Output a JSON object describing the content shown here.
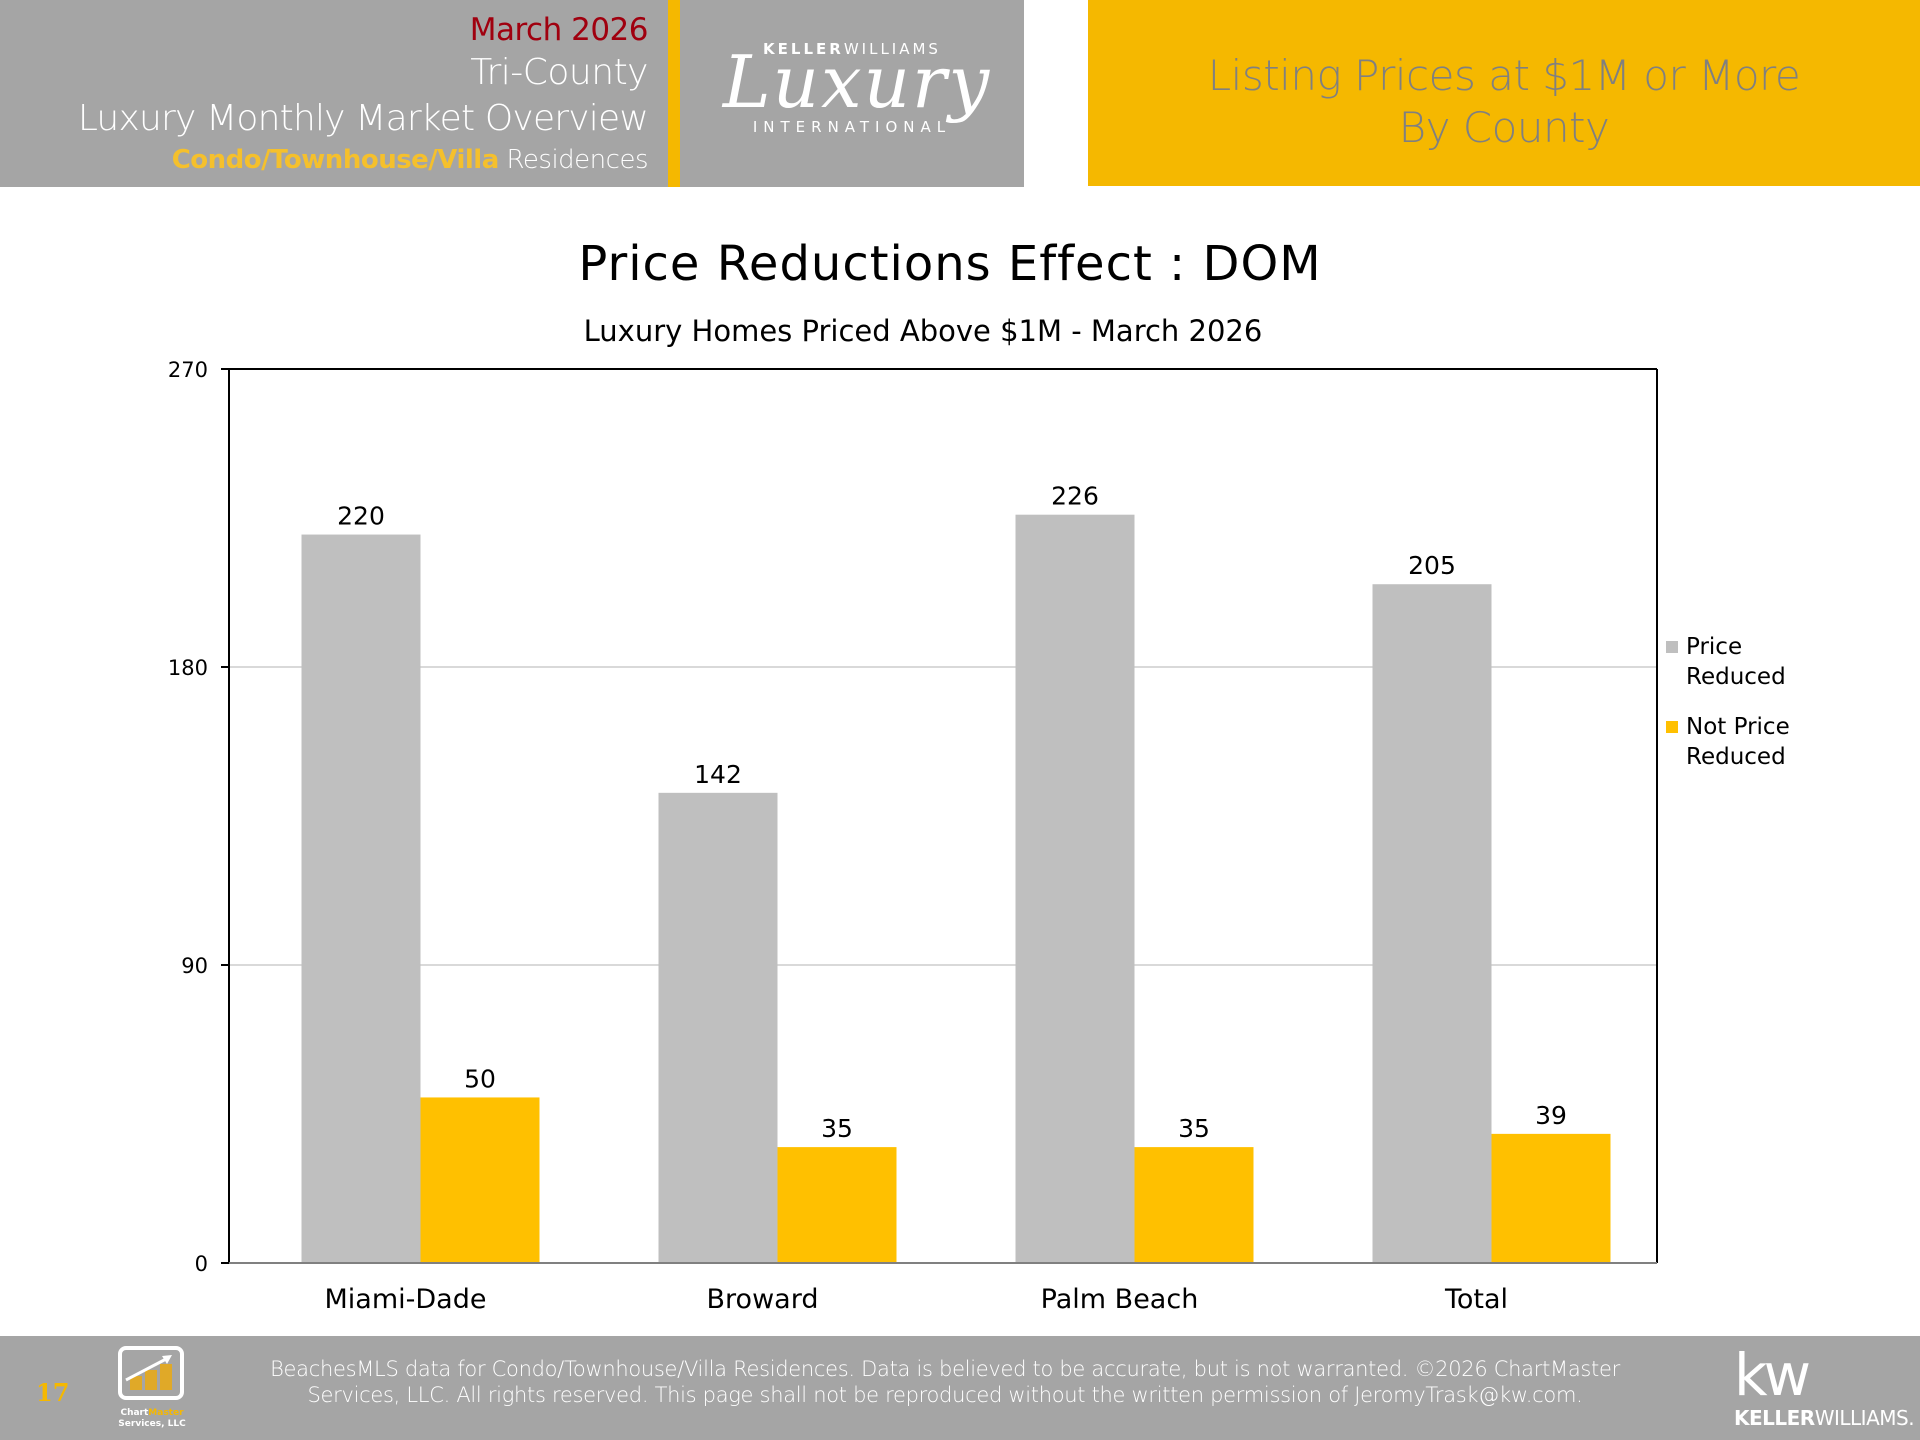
{
  "header": {
    "month": "March 2026",
    "region": "Tri-County",
    "report_title": "Luxury Monthly Market Overview",
    "property_type_accent": "Condo/Townhouse/Villa",
    "property_type_rest": " Residences",
    "logo": {
      "top_bold": "KELLER",
      "top_light": "WILLIAMS",
      "script": "Luxury",
      "bottom": "INTERNATIONAL"
    },
    "section_title_line1": "Listing Prices at $1M or More",
    "section_title_line2": "By County"
  },
  "colors": {
    "header_gray": "#a5a5a5",
    "gold": "#f5b800",
    "month_red": "#a0000f",
    "series_price_reduced": "#bfbfbf",
    "series_not_price_reduced": "#ffc000"
  },
  "chart_data": {
    "type": "bar",
    "title": "Price Reductions Effect : DOM",
    "subtitle": "Luxury Homes Priced Above $1M - March 2026",
    "xlabel": "",
    "ylabel": "",
    "categories": [
      "Miami-Dade",
      "Broward",
      "Palm Beach",
      "Total"
    ],
    "series": [
      {
        "name": "Price Reduced",
        "values": [
          220,
          142,
          226,
          205
        ],
        "color": "#bfbfbf"
      },
      {
        "name": "Not Price Reduced",
        "values": [
          50,
          35,
          35,
          39
        ],
        "color": "#ffc000"
      }
    ],
    "legend_labels": [
      [
        "Price",
        "Reduced"
      ],
      [
        "Not Price",
        "Reduced"
      ]
    ],
    "ylim": [
      0,
      270
    ],
    "yticks": [
      0,
      90,
      180,
      270
    ],
    "grid": true,
    "legend_position": "right"
  },
  "footer": {
    "page_number": "17",
    "chartmaster_name_a": "Chart",
    "chartmaster_name_b": "Master",
    "chartmaster_name_c": "Services, LLC",
    "disclaimer_line1": "BeachesMLS data for Condo/Townhouse/Villa Residences.  Data is believed to be accurate, but is not warranted.   ©2026  ChartMaster",
    "disclaimer_line2": "Services, LLC.  All rights reserved. This page shall not be reproduced without the written permission of JeromyTrask@kw.com.",
    "kw_mark": "kw",
    "kw_word_bold": "KELLER",
    "kw_word_light": "WILLIAMS."
  }
}
